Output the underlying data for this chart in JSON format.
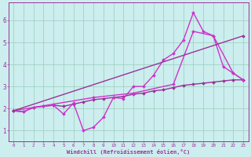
{
  "bg_color": "#cceeee",
  "grid_color": "#99ccbb",
  "line_color": "#993399",
  "tick_color": "#993399",
  "xlabel": "Windchill (Refroidissement éolien,°C)",
  "xlabel_color": "#993399",
  "xlim": [
    -0.5,
    23.5
  ],
  "ylim": [
    0.5,
    6.8
  ],
  "yticks": [
    1,
    2,
    3,
    4,
    5,
    6
  ],
  "xticks": [
    0,
    1,
    2,
    3,
    4,
    5,
    6,
    7,
    8,
    9,
    10,
    11,
    12,
    13,
    14,
    15,
    16,
    17,
    18,
    19,
    20,
    21,
    22,
    23
  ],
  "series": [
    {
      "x": [
        0,
        1,
        2,
        3,
        4,
        5,
        6,
        7,
        8,
        9,
        10,
        11,
        12,
        13,
        14,
        15,
        16,
        17,
        18,
        19,
        20,
        21,
        22,
        23
      ],
      "y": [
        1.9,
        1.85,
        2.05,
        2.1,
        2.15,
        2.1,
        2.2,
        2.3,
        2.4,
        2.45,
        2.5,
        2.55,
        2.65,
        2.7,
        2.8,
        2.85,
        2.95,
        3.05,
        3.1,
        3.15,
        3.2,
        3.25,
        3.3,
        3.3
      ],
      "color": "#993399",
      "lw": 1.0,
      "marker": "D",
      "ms": 2.0
    },
    {
      "x": [
        0,
        1,
        2,
        3,
        4,
        5,
        6,
        7,
        8,
        9,
        10,
        11,
        12,
        13,
        14,
        15,
        16,
        17,
        18,
        19,
        20,
        21,
        22,
        23
      ],
      "y": [
        1.9,
        1.85,
        2.05,
        2.1,
        2.15,
        1.75,
        2.25,
        1.0,
        1.15,
        1.6,
        2.5,
        2.45,
        3.0,
        3.0,
        3.5,
        4.2,
        4.5,
        5.1,
        6.35,
        5.5,
        5.3,
        3.9,
        3.6,
        3.3
      ],
      "color": "#cc33cc",
      "lw": 1.0,
      "marker": "D",
      "ms": 2.0
    },
    {
      "x": [
        0,
        4,
        8,
        12,
        16,
        18,
        20,
        22,
        23
      ],
      "y": [
        1.9,
        2.2,
        2.5,
        2.7,
        3.1,
        5.5,
        5.3,
        3.6,
        3.3
      ],
      "color": "#cc33cc",
      "lw": 1.0,
      "marker": "D",
      "ms": 2.0
    },
    {
      "x": [
        0,
        23
      ],
      "y": [
        1.9,
        5.3
      ],
      "color": "#993399",
      "lw": 1.0,
      "marker": "D",
      "ms": 2.0
    }
  ]
}
